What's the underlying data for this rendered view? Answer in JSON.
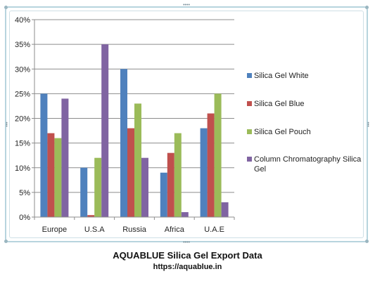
{
  "caption": {
    "title": "AQUABLUE Silica Gel Export Data",
    "url": "https://aquablue.in"
  },
  "chart_data": {
    "type": "bar",
    "categories": [
      "Europe",
      "U.S.A",
      "Russia",
      "Africa",
      "U.A.E"
    ],
    "series": [
      {
        "name": "Silica Gel White",
        "color": "#4f81bd",
        "values": [
          25,
          10,
          30,
          9,
          18
        ]
      },
      {
        "name": "Silica Gel Blue",
        "color": "#c0504d",
        "values": [
          17,
          0.4,
          18,
          13,
          21
        ]
      },
      {
        "name": "Silica Gel Pouch",
        "color": "#9bbb59",
        "values": [
          16,
          12,
          23,
          17,
          25
        ]
      },
      {
        "name": "Column Chromatography Silica Gel",
        "legend_lines": [
          "Column Chromatography Silica",
          "Gel"
        ],
        "color": "#8064a2",
        "values": [
          24,
          35,
          12,
          1,
          3
        ]
      }
    ],
    "yticks": [
      "0%",
      "5%",
      "10%",
      "15%",
      "20%",
      "25%",
      "30%",
      "35%",
      "40%"
    ],
    "ylim": [
      0,
      40
    ],
    "ylabel_format": "percent",
    "grid": true,
    "legend_position": "right",
    "title": "",
    "xlabel": "",
    "ylabel": ""
  }
}
